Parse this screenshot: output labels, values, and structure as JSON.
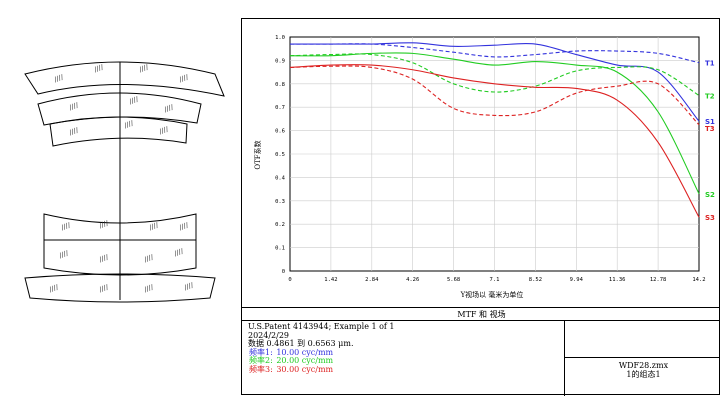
{
  "chart_data": {
    "type": "line",
    "title": "MTF 和 视场",
    "xlabel": "Y视场以 毫米为单位",
    "ylabel": "OTF系数",
    "xlim": [
      0,
      14.2
    ],
    "ylim": [
      0,
      1.0
    ],
    "x_ticks": [
      "0",
      "1.42",
      "2.84",
      "4.26",
      "5.68",
      "7.1",
      "8.52",
      "9.94",
      "11.36",
      "12.78",
      "14.2"
    ],
    "y_ticks": [
      "0",
      "0.1",
      "0.2",
      "0.3",
      "0.4",
      "0.5",
      "0.6",
      "0.7",
      "0.8",
      "0.9",
      "1.0"
    ],
    "grid": true,
    "x": [
      0,
      1.42,
      2.84,
      4.26,
      5.68,
      7.1,
      8.52,
      9.94,
      11.36,
      12.78,
      14.2
    ],
    "series": [
      {
        "name": "T1",
        "color": "#3333dd",
        "style": "dashed",
        "values": [
          0.97,
          0.97,
          0.97,
          0.955,
          0.935,
          0.915,
          0.925,
          0.94,
          0.94,
          0.93,
          0.89
        ]
      },
      {
        "name": "S1",
        "color": "#3333dd",
        "style": "solid",
        "values": [
          0.97,
          0.97,
          0.97,
          0.975,
          0.96,
          0.965,
          0.97,
          0.925,
          0.88,
          0.85,
          0.64
        ]
      },
      {
        "name": "T2",
        "color": "#22cc22",
        "style": "dashed",
        "values": [
          0.92,
          0.925,
          0.925,
          0.89,
          0.8,
          0.765,
          0.79,
          0.855,
          0.87,
          0.86,
          0.75
        ]
      },
      {
        "name": "S2",
        "color": "#22cc22",
        "style": "solid",
        "values": [
          0.92,
          0.92,
          0.93,
          0.93,
          0.905,
          0.88,
          0.895,
          0.88,
          0.85,
          0.68,
          0.33
        ]
      },
      {
        "name": "T3",
        "color": "#dd2222",
        "style": "dashed",
        "values": [
          0.87,
          0.875,
          0.87,
          0.82,
          0.695,
          0.665,
          0.68,
          0.76,
          0.79,
          0.8,
          0.625
        ]
      },
      {
        "name": "S3",
        "color": "#dd2222",
        "style": "solid",
        "values": [
          0.87,
          0.88,
          0.88,
          0.86,
          0.825,
          0.8,
          0.785,
          0.78,
          0.73,
          0.55,
          0.23
        ]
      }
    ],
    "line_labels": [
      {
        "text": "T1",
        "series": "T1"
      },
      {
        "text": "T2",
        "series": "T2"
      },
      {
        "text": "S1",
        "series": "S1"
      },
      {
        "text": "T3",
        "series": "T3"
      },
      {
        "text": "S2",
        "series": "S2"
      },
      {
        "text": "S3",
        "series": "S3"
      }
    ]
  },
  "info": {
    "line1": "U.S.Patent 4143944; Example 1 of 1",
    "line2": "2024/2/29",
    "line3": "数据 0.4861 到 0.6563 μm.",
    "freq1_label": "频率1:",
    "freq1_value": "10.00 cyc/mm",
    "freq2_label": "频率2:",
    "freq2_value": "20.00 cyc/mm",
    "freq3_label": "频率3:",
    "freq3_value": "30.00 cyc/mm",
    "file": "WDF28.zmx",
    "config": "1的组态1"
  },
  "colors": {
    "blue": "#3333dd",
    "green": "#22cc22",
    "red": "#dd2222"
  }
}
